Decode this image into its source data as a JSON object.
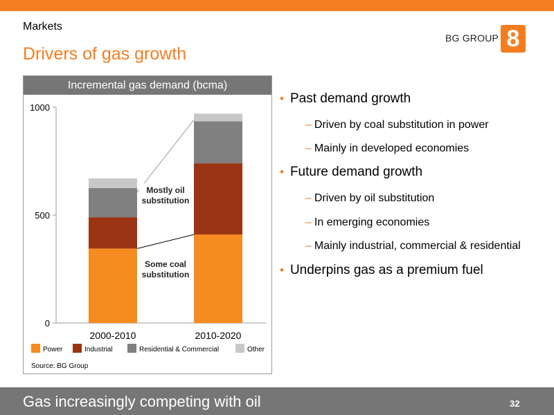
{
  "header": {
    "section": "Markets",
    "title": "Drivers of gas growth",
    "logo_text": "BG GROUP",
    "logo_glyph": "8"
  },
  "bullets": [
    {
      "text": "Past demand growth",
      "subs": [
        "Driven by coal substitution in power",
        "Mainly in developed economies"
      ]
    },
    {
      "text": "Future demand growth",
      "subs": [
        "Driven by oil substitution",
        "In emerging economies",
        "Mainly industrial, commercial & residential"
      ]
    },
    {
      "text": "Underpins gas as a premium fuel",
      "subs": []
    }
  ],
  "chart_data": {
    "type": "bar",
    "stacked": true,
    "title": "Incremental gas demand (bcma)",
    "categories": [
      "2000-2010",
      "2010-2020"
    ],
    "series": [
      {
        "name": "Power",
        "values": [
          345,
          410
        ],
        "color": "#f68b1f"
      },
      {
        "name": "Industrial",
        "values": [
          145,
          330
        ],
        "color": "#9a3412"
      },
      {
        "name": "Residential & Commercial",
        "values": [
          135,
          195
        ],
        "color": "#808080"
      },
      {
        "name": "Other",
        "values": [
          45,
          35
        ],
        "color": "#c8c8c8"
      }
    ],
    "ylim": [
      0,
      1000
    ],
    "yticks": [
      0,
      500,
      1000
    ],
    "annotations": [
      "Mostly oil substitution",
      "Some coal substitution"
    ],
    "source": "Source: BG Group",
    "grid": false,
    "legend": "bottom"
  },
  "footer": {
    "text": "Gas increasingly competing with oil",
    "page": "32"
  }
}
